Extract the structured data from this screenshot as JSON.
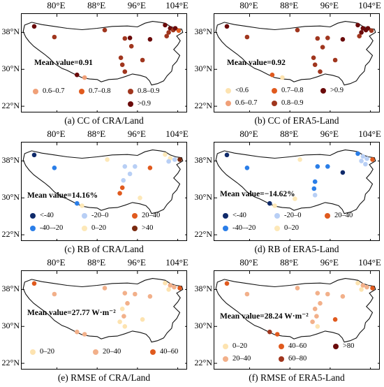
{
  "lon_ticks": [
    "80°E",
    "88°E",
    "96°E",
    "104°E"
  ],
  "lat_ticks": [
    "38°N",
    "30°N",
    "22°N"
  ],
  "panels": [
    {
      "caption": "(a) CC of CRA/Land",
      "mean": "Mean value=0.91",
      "legend": [
        {
          "label": "0.6–0.7",
          "color": "#f0a078"
        },
        {
          "label": "0.7–0.8",
          "color": "#e05a1e"
        },
        {
          "label": "0.8–0.9",
          "color": "#a0361e"
        },
        {
          "label": ">0.9",
          "color": "#6a0a0a"
        }
      ],
      "stations": [
        {
          "lon": 75.5,
          "lat": 39.3,
          "color": "#6a0a0a"
        },
        {
          "lon": 79.5,
          "lat": 37.0,
          "color": "#a0361e"
        },
        {
          "lon": 89.5,
          "lat": 38.5,
          "color": "#a0361e"
        },
        {
          "lon": 93.5,
          "lat": 36.7,
          "color": "#a0361e"
        },
        {
          "lon": 94.5,
          "lat": 36.8,
          "color": "#6a0a0a"
        },
        {
          "lon": 98.5,
          "lat": 36.5,
          "color": "#6a0a0a"
        },
        {
          "lon": 94.8,
          "lat": 35.0,
          "color": "#a0361e"
        },
        {
          "lon": 92.7,
          "lat": 32.5,
          "color": "#a0361e"
        },
        {
          "lon": 93.0,
          "lat": 31.0,
          "color": "#a0361e"
        },
        {
          "lon": 93.5,
          "lat": 29.5,
          "color": "#a0361e"
        },
        {
          "lon": 97.0,
          "lat": 32.0,
          "color": "#a0361e"
        },
        {
          "lon": 84.0,
          "lat": 28.8,
          "color": "#6a0a0a"
        },
        {
          "lon": 85.5,
          "lat": 28.2,
          "color": "#f0a078"
        },
        {
          "lon": 101.5,
          "lat": 39.6,
          "color": "#6a0a0a"
        },
        {
          "lon": 102.5,
          "lat": 38.9,
          "color": "#6a0a0a"
        },
        {
          "lon": 103.1,
          "lat": 38.5,
          "color": "#a0361e"
        },
        {
          "lon": 102.2,
          "lat": 38.0,
          "color": "#a0361e"
        },
        {
          "lon": 101.8,
          "lat": 37.2,
          "color": "#a0361e"
        },
        {
          "lon": 103.5,
          "lat": 38.9,
          "color": "#6a0a0a"
        },
        {
          "lon": 104.2,
          "lat": 38.4,
          "color": "#e05a1e"
        }
      ]
    },
    {
      "caption": "(b) CC of ERA5-Land",
      "mean": "Mean value=0.92",
      "legend": [
        {
          "label": "<0.6",
          "color": "#fde3b0"
        },
        {
          "label": "0.7–0.8",
          "color": "#e05a1e"
        },
        {
          "label": ">0.9",
          "color": "#6a0a0a"
        },
        {
          "label": "0.6–0.7",
          "color": "#f0a078"
        },
        {
          "label": "0.8–0.9",
          "color": "#a0361e"
        }
      ],
      "stations": [
        {
          "lon": 75.5,
          "lat": 39.3,
          "color": "#6a0a0a"
        },
        {
          "lon": 79.5,
          "lat": 37.0,
          "color": "#a0361e"
        },
        {
          "lon": 89.5,
          "lat": 38.5,
          "color": "#a0361e"
        },
        {
          "lon": 93.5,
          "lat": 36.7,
          "color": "#a0361e"
        },
        {
          "lon": 95.5,
          "lat": 36.8,
          "color": "#a0361e"
        },
        {
          "lon": 98.5,
          "lat": 36.5,
          "color": "#6a0a0a"
        },
        {
          "lon": 94.5,
          "lat": 34.8,
          "color": "#a0361e"
        },
        {
          "lon": 92.7,
          "lat": 32.5,
          "color": "#a0361e"
        },
        {
          "lon": 93.0,
          "lat": 31.0,
          "color": "#a0361e"
        },
        {
          "lon": 94.0,
          "lat": 29.5,
          "color": "#a0361e"
        },
        {
          "lon": 97.0,
          "lat": 32.0,
          "color": "#a0361e"
        },
        {
          "lon": 84.5,
          "lat": 28.8,
          "color": "#e05a1e"
        },
        {
          "lon": 86.5,
          "lat": 28.2,
          "color": "#fde3b0"
        },
        {
          "lon": 101.5,
          "lat": 39.6,
          "color": "#6a0a0a"
        },
        {
          "lon": 102.5,
          "lat": 38.9,
          "color": "#6a0a0a"
        },
        {
          "lon": 103.1,
          "lat": 38.5,
          "color": "#6a0a0a"
        },
        {
          "lon": 102.2,
          "lat": 38.0,
          "color": "#6a0a0a"
        },
        {
          "lon": 101.8,
          "lat": 37.2,
          "color": "#a0361e"
        },
        {
          "lon": 103.5,
          "lat": 38.9,
          "color": "#6a0a0a"
        },
        {
          "lon": 104.2,
          "lat": 38.4,
          "color": "#a0361e"
        }
      ]
    },
    {
      "caption": "(c) RB of CRA/Land",
      "mean": "Mean value=14.16%",
      "legend": [
        {
          "label": "<-40",
          "color": "#0f2a6a"
        },
        {
          "label": "-20–0",
          "color": "#b8cff5"
        },
        {
          "label": "20–40",
          "color": "#e05a1e"
        },
        {
          "label": "-40–-20",
          "color": "#2a7ee8"
        },
        {
          "label": "0–20",
          "color": "#fde8b8"
        },
        {
          "label": ">40",
          "color": "#7a2a10"
        }
      ],
      "stations": [
        {
          "lon": 75.5,
          "lat": 39.3,
          "color": "#0f2a6a"
        },
        {
          "lon": 79.5,
          "lat": 36.5,
          "color": "#2a7ee8"
        },
        {
          "lon": 90.0,
          "lat": 38.3,
          "color": "#fde8b8"
        },
        {
          "lon": 93.5,
          "lat": 36.8,
          "color": "#b8cff5"
        },
        {
          "lon": 95.5,
          "lat": 36.8,
          "color": "#b8cff5"
        },
        {
          "lon": 98.5,
          "lat": 36.5,
          "color": "#e05a1e"
        },
        {
          "lon": 94.5,
          "lat": 35.2,
          "color": "#b8cff5"
        },
        {
          "lon": 93.2,
          "lat": 33.8,
          "color": "#b8cff5"
        },
        {
          "lon": 93.0,
          "lat": 32.2,
          "color": "#e05a1e"
        },
        {
          "lon": 92.5,
          "lat": 31.0,
          "color": "#e05a1e"
        },
        {
          "lon": 96.5,
          "lat": 30.0,
          "color": "#fde8b8"
        },
        {
          "lon": 84.0,
          "lat": 28.8,
          "color": "#2a7ee8"
        },
        {
          "lon": 85.0,
          "lat": 28.3,
          "color": "#fde8b8"
        },
        {
          "lon": 101.5,
          "lat": 39.4,
          "color": "#fde8b8"
        },
        {
          "lon": 102.5,
          "lat": 38.6,
          "color": "#fde8b8"
        },
        {
          "lon": 103.4,
          "lat": 38.3,
          "color": "#b8cff5"
        },
        {
          "lon": 102.2,
          "lat": 37.9,
          "color": "#b8cff5"
        },
        {
          "lon": 104.4,
          "lat": 38.3,
          "color": "#7a2a10"
        }
      ]
    },
    {
      "caption": "(d) RB of ERA5-Land",
      "mean": "Mean value=−14.62%",
      "legend": [
        {
          "label": "<-40",
          "color": "#0f2a6a"
        },
        {
          "label": "-20–0",
          "color": "#b8cff5"
        },
        {
          "label": "20–40",
          "color": "#e05a1e"
        },
        {
          "label": "-40–-20",
          "color": "#2a7ee8"
        },
        {
          "label": "0–20",
          "color": "#fde8b8"
        }
      ],
      "stations": [
        {
          "lon": 75.5,
          "lat": 39.3,
          "color": "#0f2a6a"
        },
        {
          "lon": 79.5,
          "lat": 36.5,
          "color": "#2a7ee8"
        },
        {
          "lon": 90.0,
          "lat": 38.3,
          "color": "#fde8b8"
        },
        {
          "lon": 93.5,
          "lat": 36.8,
          "color": "#2a7ee8"
        },
        {
          "lon": 95.5,
          "lat": 36.8,
          "color": "#2a7ee8"
        },
        {
          "lon": 98.5,
          "lat": 35.5,
          "color": "#0f2a6a"
        },
        {
          "lon": 93.0,
          "lat": 33.5,
          "color": "#2a7ee8"
        },
        {
          "lon": 92.8,
          "lat": 32.0,
          "color": "#2a7ee8"
        },
        {
          "lon": 93.0,
          "lat": 30.6,
          "color": "#b8cff5"
        },
        {
          "lon": 89.0,
          "lat": 29.8,
          "color": "#fde8b8"
        },
        {
          "lon": 84.0,
          "lat": 28.8,
          "color": "#0f2a6a"
        },
        {
          "lon": 85.0,
          "lat": 28.3,
          "color": "#fde8b8"
        },
        {
          "lon": 101.5,
          "lat": 39.6,
          "color": "#2a7ee8"
        },
        {
          "lon": 102.5,
          "lat": 39.0,
          "color": "#b8cff5"
        },
        {
          "lon": 103.3,
          "lat": 38.5,
          "color": "#b8cff5"
        },
        {
          "lon": 102.2,
          "lat": 38.0,
          "color": "#b8cff5"
        },
        {
          "lon": 103.0,
          "lat": 37.3,
          "color": "#b8cff5"
        },
        {
          "lon": 104.4,
          "lat": 38.3,
          "color": "#e05a1e"
        }
      ]
    },
    {
      "caption": "(e) RMSE of CRA/Land",
      "mean": "Mean value=27.77 W·m⁻²",
      "legend": [
        {
          "label": "0–20",
          "color": "#fde3b0"
        },
        {
          "label": "20–40",
          "color": "#f2b08a"
        },
        {
          "label": "40–60",
          "color": "#e05a1e"
        }
      ],
      "stations": [
        {
          "lon": 75.5,
          "lat": 39.3,
          "color": "#e05a1e"
        },
        {
          "lon": 79.5,
          "lat": 37.0,
          "color": "#f2b08a"
        },
        {
          "lon": 89.5,
          "lat": 38.3,
          "color": "#f2b08a"
        },
        {
          "lon": 93.5,
          "lat": 37.2,
          "color": "#f2b08a"
        },
        {
          "lon": 95.5,
          "lat": 37.0,
          "color": "#f2b08a"
        },
        {
          "lon": 98.5,
          "lat": 36.5,
          "color": "#f2b08a"
        },
        {
          "lon": 94.0,
          "lat": 35.0,
          "color": "#f2b08a"
        },
        {
          "lon": 93.0,
          "lat": 33.8,
          "color": "#fde3b0"
        },
        {
          "lon": 93.3,
          "lat": 32.2,
          "color": "#f2b08a"
        },
        {
          "lon": 92.5,
          "lat": 31.0,
          "color": "#fde3b0"
        },
        {
          "lon": 93.5,
          "lat": 30.0,
          "color": "#fde3b0"
        },
        {
          "lon": 97.0,
          "lat": 31.5,
          "color": "#fde3b0"
        },
        {
          "lon": 84.0,
          "lat": 28.8,
          "color": "#f2b08a"
        },
        {
          "lon": 85.5,
          "lat": 28.3,
          "color": "#f2b08a"
        },
        {
          "lon": 101.5,
          "lat": 39.4,
          "color": "#fde3b0"
        },
        {
          "lon": 102.5,
          "lat": 38.9,
          "color": "#f2b08a"
        },
        {
          "lon": 103.3,
          "lat": 38.5,
          "color": "#f2b08a"
        },
        {
          "lon": 102.2,
          "lat": 38.0,
          "color": "#fde3b0"
        },
        {
          "lon": 104.4,
          "lat": 38.3,
          "color": "#e05a1e"
        }
      ]
    },
    {
      "caption": "(f) RMSE of ERA5-Land",
      "mean": "Mean value=28.24 W·m⁻²",
      "legend": [
        {
          "label": "0–20",
          "color": "#fde3b0"
        },
        {
          "label": "40–60",
          "color": "#e05a1e"
        },
        {
          "label": ">80",
          "color": "#6a0a0a"
        },
        {
          "label": "20–40",
          "color": "#f2b08a"
        },
        {
          "label": "60–80",
          "color": "#a0361e"
        }
      ],
      "stations": [
        {
          "lon": 75.5,
          "lat": 39.3,
          "color": "#e05a1e"
        },
        {
          "lon": 79.5,
          "lat": 37.0,
          "color": "#f2b08a"
        },
        {
          "lon": 89.5,
          "lat": 38.3,
          "color": "#f2b08a"
        },
        {
          "lon": 93.5,
          "lat": 37.2,
          "color": "#f2b08a"
        },
        {
          "lon": 95.5,
          "lat": 37.0,
          "color": "#f2b08a"
        },
        {
          "lon": 98.5,
          "lat": 36.5,
          "color": "#f2b08a"
        },
        {
          "lon": 94.0,
          "lat": 35.0,
          "color": "#f2b08a"
        },
        {
          "lon": 93.0,
          "lat": 33.8,
          "color": "#f2b08a"
        },
        {
          "lon": 93.3,
          "lat": 32.2,
          "color": "#f2b08a"
        },
        {
          "lon": 92.5,
          "lat": 31.0,
          "color": "#f2b08a"
        },
        {
          "lon": 93.5,
          "lat": 30.0,
          "color": "#fde3b0"
        },
        {
          "lon": 97.0,
          "lat": 31.5,
          "color": "#e05a1e"
        },
        {
          "lon": 84.0,
          "lat": 28.8,
          "color": "#a0361e"
        },
        {
          "lon": 85.5,
          "lat": 28.3,
          "color": "#e05a1e"
        },
        {
          "lon": 101.5,
          "lat": 39.4,
          "color": "#fde3b0"
        },
        {
          "lon": 102.5,
          "lat": 38.9,
          "color": "#f2b08a"
        },
        {
          "lon": 103.3,
          "lat": 38.5,
          "color": "#f2b08a"
        },
        {
          "lon": 102.2,
          "lat": 38.0,
          "color": "#fde3b0"
        },
        {
          "lon": 104.4,
          "lat": 38.3,
          "color": "#e05a1e"
        }
      ]
    }
  ]
}
